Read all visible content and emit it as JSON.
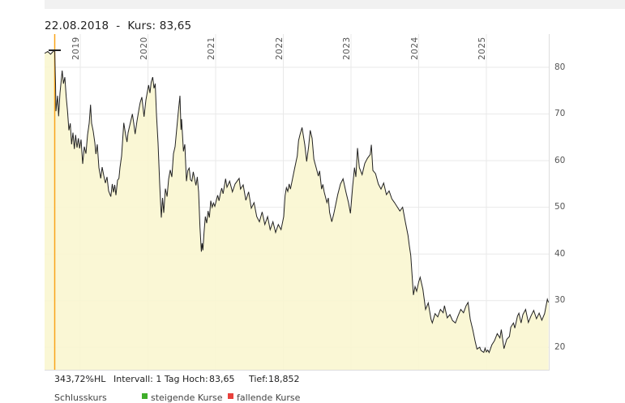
{
  "title": {
    "text": "22.08.2018  -  Kurs: 83,65"
  },
  "status_bar": {
    "range_pct": "343,72%HL",
    "interval": "Intervall: 1 Tag",
    "high_label": "Hoch:",
    "high_value": "83,65",
    "low_label": "Tief:",
    "low_value": "18,852"
  },
  "legend_partial": {
    "note": "row cropped at bottom edge of screenshot",
    "item1_label": "Schlusskurs",
    "item2_label": "steigende Kurse",
    "item3_label": "fallende Kurse",
    "item2_color": "#3fae2a",
    "item3_color": "#e8413c"
  },
  "colors": {
    "topbar": "#f1f1f1",
    "grid": "#e9e9e9",
    "border": "#dddddd",
    "line": "#222222",
    "area_fill": "#faf6d0",
    "crosshair": "#f9a51a",
    "tick_text": "#555555"
  },
  "chart_data": {
    "type": "area",
    "title": "22.08.2018 - Kurs: 83,65",
    "xlabel": "",
    "ylabel": "",
    "x_range": [
      2018.473,
      2025.934
    ],
    "y_range": [
      15.0,
      87.13
    ],
    "grid": true,
    "x_ticks": [
      {
        "label": "2019",
        "value": 2019
      },
      {
        "label": "2020",
        "value": 2020
      },
      {
        "label": "2021",
        "value": 2021
      },
      {
        "label": "2022",
        "value": 2022
      },
      {
        "label": "2023",
        "value": 2023
      },
      {
        "label": "2024",
        "value": 2024
      },
      {
        "label": "2025",
        "value": 2025
      }
    ],
    "y_ticks": [
      20,
      30,
      40,
      50,
      60,
      70,
      80
    ],
    "crosshair": {
      "x": 2018.623,
      "price": 83.65
    },
    "series": [
      {
        "name": "Kurs",
        "points": [
          [
            2018.473,
            83.0
          ],
          [
            2018.52,
            83.4
          ],
          [
            2018.56,
            82.8
          ],
          [
            2018.6,
            83.4
          ],
          [
            2018.623,
            83.65
          ],
          [
            2018.635,
            76.5
          ],
          [
            2018.641,
            70.6
          ],
          [
            2018.665,
            73.9
          ],
          [
            2018.68,
            69.5
          ],
          [
            2018.7,
            74.5
          ],
          [
            2018.733,
            79.3
          ],
          [
            2018.752,
            76.5
          ],
          [
            2018.772,
            77.9
          ],
          [
            2018.793,
            73.6
          ],
          [
            2018.812,
            70.6
          ],
          [
            2018.832,
            66.5
          ],
          [
            2018.853,
            68.0
          ],
          [
            2018.872,
            63.5
          ],
          [
            2018.892,
            66.0
          ],
          [
            2018.913,
            62.5
          ],
          [
            2018.932,
            65.5
          ],
          [
            2018.952,
            62.8
          ],
          [
            2018.972,
            64.8
          ],
          [
            2018.99,
            62.6
          ],
          [
            2019.012,
            64.5
          ],
          [
            2019.036,
            59.3
          ],
          [
            2019.06,
            63.0
          ],
          [
            2019.084,
            61.5
          ],
          [
            2019.108,
            65.5
          ],
          [
            2019.132,
            68.0
          ],
          [
            2019.152,
            72.0
          ],
          [
            2019.168,
            68.0
          ],
          [
            2019.192,
            66.3
          ],
          [
            2019.216,
            63.8
          ],
          [
            2019.231,
            61.4
          ],
          [
            2019.251,
            63.5
          ],
          [
            2019.275,
            58.5
          ],
          [
            2019.303,
            56.2
          ],
          [
            2019.323,
            58.6
          ],
          [
            2019.347,
            56.8
          ],
          [
            2019.371,
            55.2
          ],
          [
            2019.395,
            56.5
          ],
          [
            2019.419,
            53.5
          ],
          [
            2019.451,
            52.3
          ],
          [
            2019.473,
            55.0
          ],
          [
            2019.491,
            53.2
          ],
          [
            2019.509,
            54.8
          ],
          [
            2019.527,
            52.6
          ],
          [
            2019.551,
            55.8
          ],
          [
            2019.571,
            56.2
          ],
          [
            2019.587,
            58.5
          ],
          [
            2019.611,
            61.0
          ],
          [
            2019.643,
            68.1
          ],
          [
            2019.671,
            65.5
          ],
          [
            2019.691,
            64.0
          ],
          [
            2019.707,
            66.0
          ],
          [
            2019.731,
            67.5
          ],
          [
            2019.77,
            70.0
          ],
          [
            2019.79,
            68.0
          ],
          [
            2019.811,
            65.7
          ],
          [
            2019.838,
            68.5
          ],
          [
            2019.871,
            71.3
          ],
          [
            2019.886,
            72.5
          ],
          [
            2019.91,
            73.6
          ],
          [
            2019.943,
            69.4
          ],
          [
            2019.97,
            73.0
          ],
          [
            2020.01,
            76.2
          ],
          [
            2020.03,
            74.5
          ],
          [
            2020.048,
            76.8
          ],
          [
            2020.07,
            77.9
          ],
          [
            2020.09,
            75.5
          ],
          [
            2020.108,
            76.5
          ],
          [
            2020.126,
            70.0
          ],
          [
            2020.15,
            63.7
          ],
          [
            2020.174,
            55.0
          ],
          [
            2020.198,
            47.8
          ],
          [
            2020.216,
            52.0
          ],
          [
            2020.234,
            48.8
          ],
          [
            2020.258,
            54.0
          ],
          [
            2020.282,
            52.3
          ],
          [
            2020.305,
            56.0
          ],
          [
            2020.329,
            58.0
          ],
          [
            2020.353,
            56.5
          ],
          [
            2020.377,
            61.5
          ],
          [
            2020.401,
            63.0
          ],
          [
            2020.425,
            66.8
          ],
          [
            2020.449,
            70.5
          ],
          [
            2020.473,
            73.9
          ],
          [
            2020.489,
            66.6
          ],
          [
            2020.497,
            68.9
          ],
          [
            2020.525,
            62.0
          ],
          [
            2020.545,
            63.5
          ],
          [
            2020.569,
            55.6
          ],
          [
            2020.589,
            57.9
          ],
          [
            2020.609,
            58.4
          ],
          [
            2020.629,
            55.9
          ],
          [
            2020.649,
            55.6
          ],
          [
            2020.669,
            57.6
          ],
          [
            2020.689,
            56.2
          ],
          [
            2020.709,
            54.7
          ],
          [
            2020.729,
            56.5
          ],
          [
            2020.749,
            53.3
          ],
          [
            2020.769,
            45.7
          ],
          [
            2020.789,
            40.5
          ],
          [
            2020.8,
            42.3
          ],
          [
            2020.812,
            40.8
          ],
          [
            2020.829,
            44.6
          ],
          [
            2020.848,
            48.0
          ],
          [
            2020.868,
            46.6
          ],
          [
            2020.888,
            49.2
          ],
          [
            2020.908,
            47.8
          ],
          [
            2020.928,
            51.4
          ],
          [
            2020.948,
            50.0
          ],
          [
            2020.968,
            50.9
          ],
          [
            2020.988,
            50.2
          ],
          [
            2021.03,
            52.6
          ],
          [
            2021.05,
            51.4
          ],
          [
            2021.07,
            53.0
          ],
          [
            2021.09,
            54.1
          ],
          [
            2021.11,
            52.9
          ],
          [
            2021.147,
            56.1
          ],
          [
            2021.168,
            54.3
          ],
          [
            2021.207,
            55.6
          ],
          [
            2021.248,
            53.3
          ],
          [
            2021.287,
            55.0
          ],
          [
            2021.347,
            56.2
          ],
          [
            2021.368,
            53.9
          ],
          [
            2021.407,
            54.8
          ],
          [
            2021.447,
            51.5
          ],
          [
            2021.487,
            53.3
          ],
          [
            2021.527,
            49.8
          ],
          [
            2021.567,
            51.0
          ],
          [
            2021.607,
            48.0
          ],
          [
            2021.647,
            46.9
          ],
          [
            2021.687,
            49.0
          ],
          [
            2021.727,
            46.3
          ],
          [
            2021.767,
            48.0
          ],
          [
            2021.806,
            45.2
          ],
          [
            2021.847,
            46.9
          ],
          [
            2021.886,
            44.6
          ],
          [
            2021.926,
            46.3
          ],
          [
            2021.966,
            45.2
          ],
          [
            2022.006,
            48.0
          ],
          [
            2022.026,
            52.5
          ],
          [
            2022.045,
            54.2
          ],
          [
            2022.066,
            53.4
          ],
          [
            2022.086,
            55.0
          ],
          [
            2022.105,
            53.9
          ],
          [
            2022.165,
            58.2
          ],
          [
            2022.206,
            61.0
          ],
          [
            2022.225,
            64.3
          ],
          [
            2022.245,
            65.5
          ],
          [
            2022.277,
            67.1
          ],
          [
            2022.317,
            63.4
          ],
          [
            2022.345,
            59.8
          ],
          [
            2022.373,
            63.0
          ],
          [
            2022.397,
            66.5
          ],
          [
            2022.425,
            64.8
          ],
          [
            2022.452,
            60.3
          ],
          [
            2022.485,
            58.5
          ],
          [
            2022.517,
            56.7
          ],
          [
            2022.536,
            57.8
          ],
          [
            2022.565,
            53.9
          ],
          [
            2022.584,
            54.9
          ],
          [
            2022.604,
            53.3
          ],
          [
            2022.644,
            51.0
          ],
          [
            2022.664,
            52.0
          ],
          [
            2022.684,
            48.9
          ],
          [
            2022.716,
            46.9
          ],
          [
            2022.744,
            48.5
          ],
          [
            2022.763,
            49.8
          ],
          [
            2022.804,
            52.7
          ],
          [
            2022.844,
            55.0
          ],
          [
            2022.883,
            56.1
          ],
          [
            2022.924,
            53.3
          ],
          [
            2022.963,
            51.0
          ],
          [
            2022.991,
            48.7
          ],
          [
            2023.024,
            54.4
          ],
          [
            2023.051,
            58.5
          ],
          [
            2023.072,
            56.5
          ],
          [
            2023.096,
            62.7
          ],
          [
            2023.123,
            58.5
          ],
          [
            2023.164,
            57.0
          ],
          [
            2023.204,
            59.4
          ],
          [
            2023.243,
            60.5
          ],
          [
            2023.284,
            61.3
          ],
          [
            2023.3,
            63.4
          ],
          [
            2023.323,
            57.9
          ],
          [
            2023.363,
            57.2
          ],
          [
            2023.403,
            55.0
          ],
          [
            2023.443,
            53.9
          ],
          [
            2023.483,
            55.2
          ],
          [
            2023.523,
            52.7
          ],
          [
            2023.563,
            53.5
          ],
          [
            2023.603,
            51.8
          ],
          [
            2023.643,
            51.0
          ],
          [
            2023.683,
            50.1
          ],
          [
            2023.722,
            49.2
          ],
          [
            2023.763,
            50.0
          ],
          [
            2023.802,
            46.9
          ],
          [
            2023.842,
            44.0
          ],
          [
            2023.862,
            41.7
          ],
          [
            2023.883,
            39.7
          ],
          [
            2023.902,
            35.6
          ],
          [
            2023.922,
            31.2
          ],
          [
            2023.946,
            33.0
          ],
          [
            2023.97,
            32.0
          ],
          [
            2024.0,
            34.0
          ],
          [
            2024.022,
            35.0
          ],
          [
            2024.062,
            32.4
          ],
          [
            2024.102,
            28.1
          ],
          [
            2024.141,
            29.5
          ],
          [
            2024.182,
            26.0
          ],
          [
            2024.201,
            25.2
          ],
          [
            2024.242,
            27.2
          ],
          [
            2024.281,
            26.5
          ],
          [
            2024.321,
            28.1
          ],
          [
            2024.362,
            27.4
          ],
          [
            2024.381,
            28.9
          ],
          [
            2024.422,
            26.3
          ],
          [
            2024.461,
            27.0
          ],
          [
            2024.501,
            25.7
          ],
          [
            2024.542,
            25.2
          ],
          [
            2024.581,
            26.7
          ],
          [
            2024.621,
            28.1
          ],
          [
            2024.662,
            27.4
          ],
          [
            2024.701,
            28.9
          ],
          [
            2024.729,
            29.6
          ],
          [
            2024.761,
            26.0
          ],
          [
            2024.801,
            23.6
          ],
          [
            2024.833,
            21.3
          ],
          [
            2024.861,
            19.6
          ],
          [
            2024.902,
            20.0
          ],
          [
            2024.921,
            19.3
          ],
          [
            2024.962,
            18.9
          ],
          [
            2024.981,
            19.8
          ],
          [
            2025.0,
            19.0
          ],
          [
            2025.02,
            19.4
          ],
          [
            2025.04,
            18.852
          ],
          [
            2025.08,
            20.5
          ],
          [
            2025.12,
            21.4
          ],
          [
            2025.16,
            22.9
          ],
          [
            2025.2,
            22.0
          ],
          [
            2025.22,
            23.8
          ],
          [
            2025.26,
            19.7
          ],
          [
            2025.3,
            21.7
          ],
          [
            2025.34,
            22.3
          ],
          [
            2025.36,
            24.3
          ],
          [
            2025.4,
            25.2
          ],
          [
            2025.42,
            24.1
          ],
          [
            2025.46,
            26.7
          ],
          [
            2025.48,
            27.3
          ],
          [
            2025.512,
            25.2
          ],
          [
            2025.539,
            27.0
          ],
          [
            2025.579,
            28.1
          ],
          [
            2025.62,
            25.3
          ],
          [
            2025.659,
            26.7
          ],
          [
            2025.699,
            27.9
          ],
          [
            2025.74,
            26.1
          ],
          [
            2025.78,
            27.3
          ],
          [
            2025.819,
            25.8
          ],
          [
            2025.86,
            27.2
          ],
          [
            2025.9,
            30.3
          ],
          [
            2025.917,
            29.6
          ]
        ]
      }
    ]
  }
}
